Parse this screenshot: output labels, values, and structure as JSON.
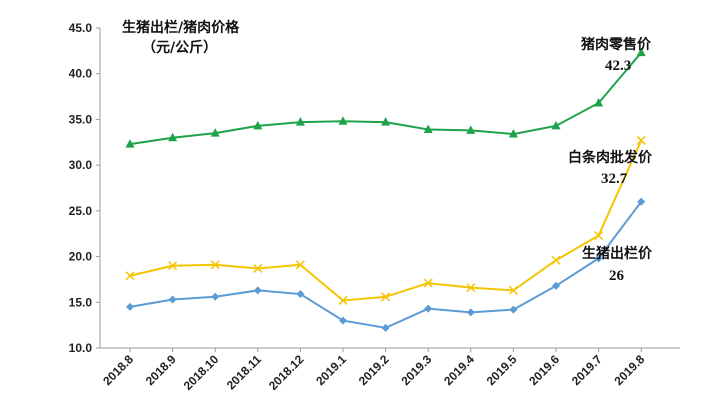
{
  "chart_data": {
    "type": "line",
    "title": "生猪出栏/猪肉价格",
    "unit": "（元/公斤）",
    "categories": [
      "2018.8",
      "2018.9",
      "2018.10",
      "2018.11",
      "2018.12",
      "2019.1",
      "2019.2",
      "2019.3",
      "2019.4",
      "2019.5",
      "2019.6",
      "2019.7",
      "2019.8"
    ],
    "y_ticks": [
      "10.0",
      "15.0",
      "20.0",
      "25.0",
      "30.0",
      "35.0",
      "40.0",
      "45.0"
    ],
    "ylim": [
      10,
      45
    ],
    "grid": false,
    "series": [
      {
        "name": "猪肉零售价",
        "color": "#1fa34a",
        "marker": "triangle",
        "values": [
          32.3,
          33.0,
          33.5,
          34.3,
          34.7,
          34.8,
          34.7,
          33.9,
          33.8,
          33.4,
          34.3,
          36.8,
          42.3
        ],
        "label_name": "猪肉零售价",
        "label_value": "42.3"
      },
      {
        "name": "白条肉批发价",
        "color": "#f5c400",
        "marker": "x",
        "values": [
          17.9,
          19.0,
          19.1,
          18.7,
          19.1,
          15.2,
          15.6,
          17.1,
          16.6,
          16.3,
          19.6,
          22.3,
          32.7
        ],
        "label_name": "白条肉批发价",
        "label_value": "32.7"
      },
      {
        "name": "生猪出栏价",
        "color": "#5b9bd5",
        "marker": "diamond",
        "values": [
          14.5,
          15.3,
          15.6,
          16.3,
          15.9,
          13.0,
          12.2,
          14.3,
          13.9,
          14.2,
          16.8,
          19.8,
          26.0
        ],
        "label_name": "生猪出栏价",
        "label_value": "26"
      }
    ]
  }
}
